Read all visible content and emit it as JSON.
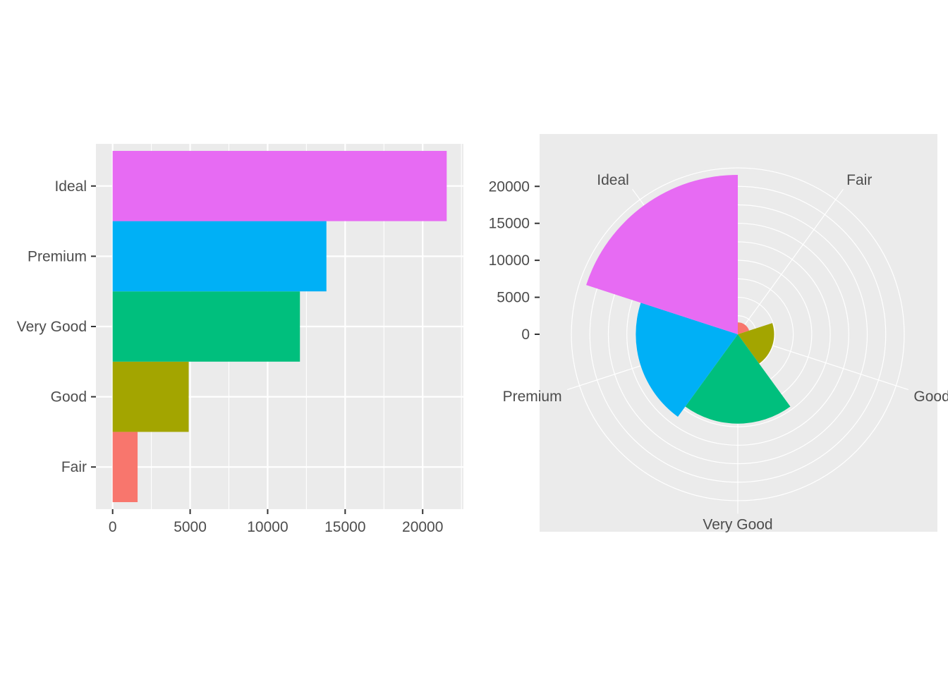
{
  "chart_data": [
    {
      "type": "bar",
      "orientation": "horizontal",
      "categories": [
        "Fair",
        "Good",
        "Very Good",
        "Premium",
        "Ideal"
      ],
      "values": [
        1610,
        4906,
        12082,
        13791,
        21551
      ],
      "colors": [
        "#F8766D",
        "#A3A500",
        "#00BF7D",
        "#00B0F6",
        "#E76BF3"
      ],
      "xlim": [
        -1078,
        22629
      ],
      "xticks": [
        0,
        5000,
        10000,
        15000,
        20000
      ],
      "xtick_labels": [
        "0",
        "5000",
        "10000",
        "15000",
        "20000"
      ],
      "title": "",
      "xlabel": "",
      "ylabel": "",
      "grid": true,
      "legend": "none",
      "panel_background": "#EBEBEB"
    },
    {
      "type": "bar",
      "coord": "polar",
      "categories": [
        "Fair",
        "Good",
        "Very Good",
        "Premium",
        "Ideal"
      ],
      "values": [
        1610,
        4906,
        12082,
        13791,
        21551
      ],
      "colors": [
        "#F8766D",
        "#A3A500",
        "#00BF7D",
        "#00B0F6",
        "#E76BF3"
      ],
      "rlim": [
        0,
        21551
      ],
      "rticks": [
        0,
        5000,
        10000,
        15000,
        20000
      ],
      "rtick_labels": [
        "0",
        "5000",
        "10000",
        "15000",
        "20000"
      ],
      "title": "",
      "xlabel": "",
      "ylabel": "",
      "grid": true,
      "legend": "none",
      "panel_background": "#EBEBEB"
    }
  ]
}
